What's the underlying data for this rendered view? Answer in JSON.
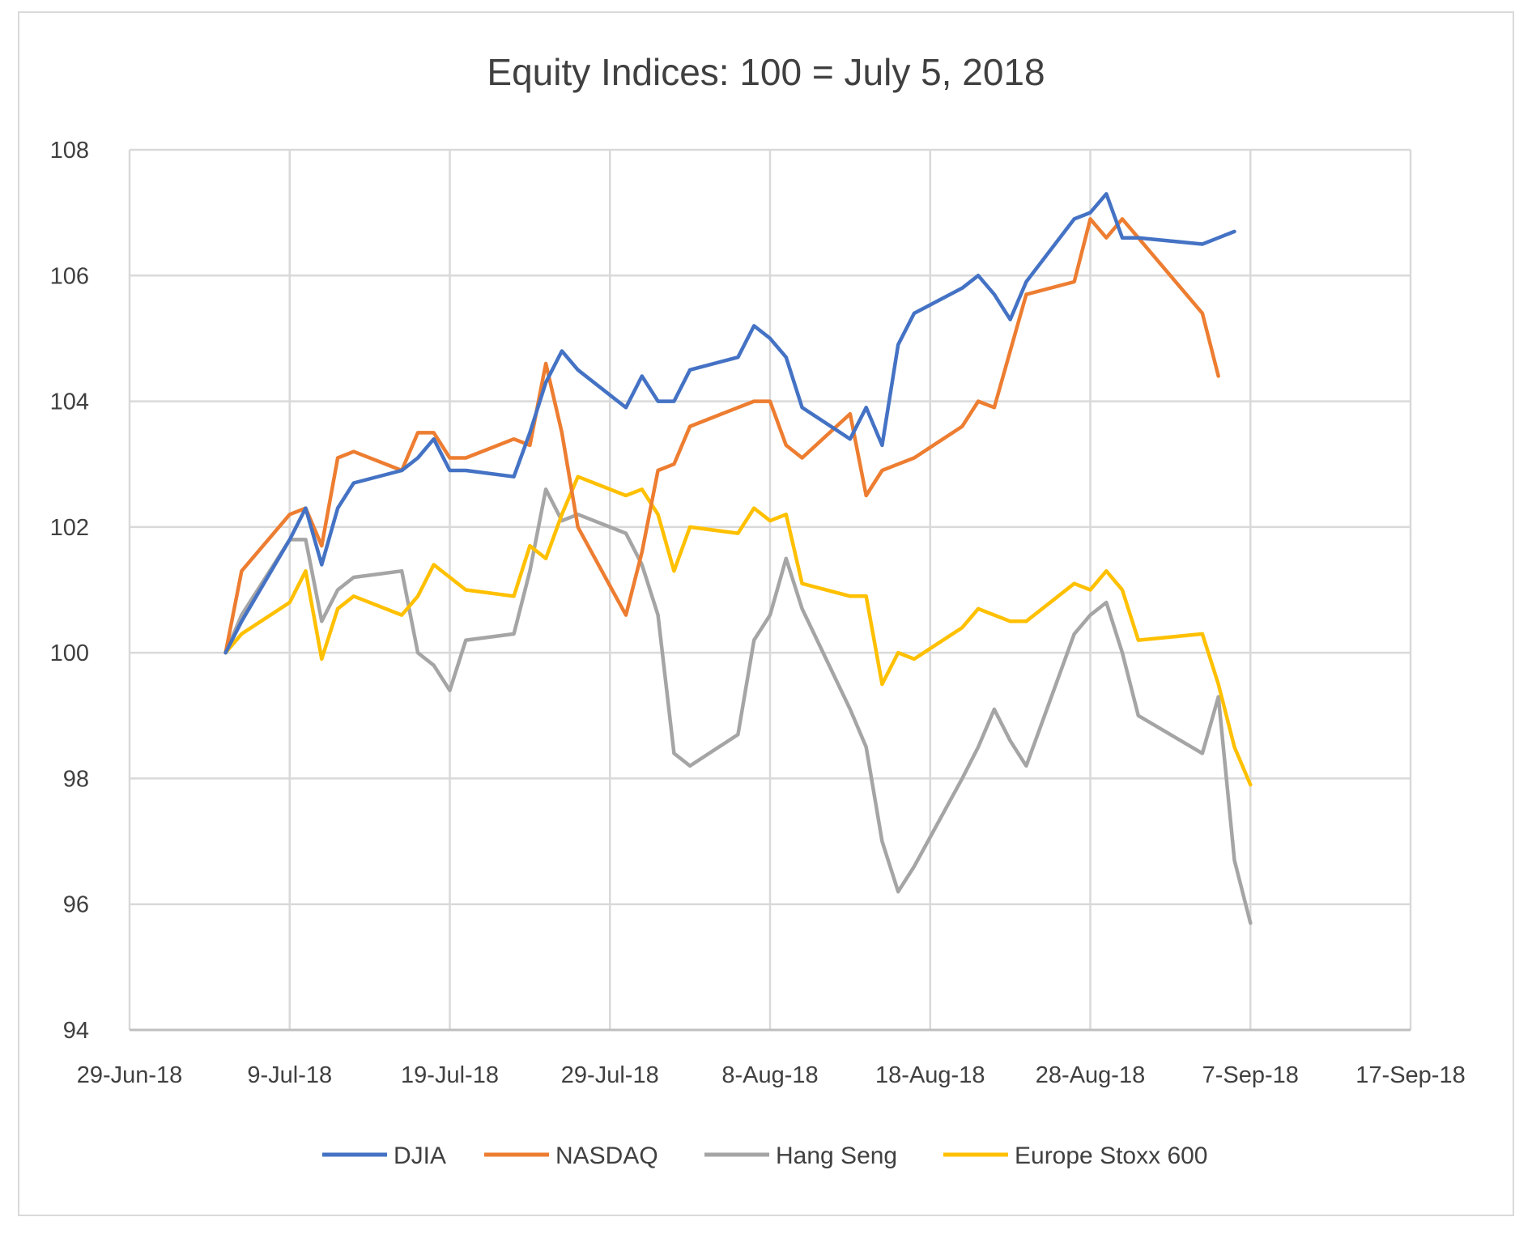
{
  "chart_data": {
    "type": "line",
    "title": "Equity Indices: 100 = July 5, 2018",
    "xlabel": "",
    "ylabel": "",
    "x_dates": [
      "2018-07-05",
      "2018-07-06",
      "2018-07-09",
      "2018-07-10",
      "2018-07-11",
      "2018-07-12",
      "2018-07-13",
      "2018-07-16",
      "2018-07-17",
      "2018-07-18",
      "2018-07-19",
      "2018-07-20",
      "2018-07-23",
      "2018-07-24",
      "2018-07-25",
      "2018-07-26",
      "2018-07-27",
      "2018-07-30",
      "2018-07-31",
      "2018-08-01",
      "2018-08-02",
      "2018-08-03",
      "2018-08-06",
      "2018-08-07",
      "2018-08-08",
      "2018-08-09",
      "2018-08-10",
      "2018-08-13",
      "2018-08-14",
      "2018-08-15",
      "2018-08-16",
      "2018-08-17",
      "2018-08-20",
      "2018-08-21",
      "2018-08-22",
      "2018-08-23",
      "2018-08-24",
      "2018-08-27",
      "2018-08-28",
      "2018-08-29",
      "2018-08-30",
      "2018-08-31",
      "2018-09-04",
      "2018-09-05",
      "2018-09-06"
    ],
    "series": [
      {
        "name": "DJIA",
        "color": "#4472c4",
        "values": [
          100.0,
          100.5,
          101.8,
          102.3,
          101.4,
          102.3,
          102.7,
          102.9,
          103.1,
          103.4,
          102.9,
          102.9,
          102.8,
          103.5,
          104.3,
          104.8,
          104.5,
          103.9,
          104.4,
          104.0,
          104.0,
          104.5,
          104.7,
          105.2,
          105.0,
          104.7,
          103.9,
          103.4,
          103.9,
          103.3,
          104.9,
          105.4,
          105.8,
          106.0,
          105.7,
          105.3,
          105.9,
          106.9,
          107.0,
          107.3,
          106.6,
          106.6,
          106.5,
          106.6,
          106.7
        ]
      },
      {
        "name": "NASDAQ",
        "color": "#ed7d31",
        "values": [
          100.0,
          101.3,
          102.2,
          102.3,
          101.7,
          103.1,
          103.2,
          102.9,
          103.5,
          103.5,
          103.1,
          103.1,
          103.4,
          103.3,
          104.6,
          103.5,
          102.0,
          100.6,
          101.6,
          102.9,
          103.0,
          103.6,
          103.9,
          104.0,
          104.0,
          103.3,
          103.1,
          103.8,
          102.5,
          102.9,
          103.0,
          103.1,
          103.6,
          104.0,
          103.9,
          104.8,
          105.7,
          105.9,
          106.9,
          106.6,
          106.9,
          106.6,
          105.4,
          104.4,
          null
        ]
      },
      {
        "name": "Hang Seng",
        "color": "#a5a5a5",
        "values": [
          100.0,
          100.6,
          101.8,
          101.8,
          100.5,
          101.0,
          101.2,
          101.3,
          100.0,
          99.8,
          99.4,
          100.2,
          100.3,
          101.3,
          102.6,
          102.1,
          102.2,
          101.9,
          101.4,
          100.6,
          98.4,
          98.2,
          98.7,
          100.2,
          100.6,
          101.5,
          100.7,
          99.1,
          98.5,
          97.0,
          96.2,
          96.6,
          98.0,
          98.5,
          99.1,
          98.6,
          98.2,
          100.3,
          100.6,
          100.8,
          100.0,
          99.0,
          98.4,
          99.3,
          96.7
        ]
      },
      {
        "name": "Europe Stoxx 600",
        "color": "#ffc000",
        "values": [
          100.0,
          100.3,
          100.8,
          101.3,
          99.9,
          100.7,
          100.9,
          100.6,
          100.9,
          101.4,
          101.2,
          101.0,
          100.9,
          101.7,
          101.5,
          102.2,
          102.8,
          102.5,
          102.6,
          102.2,
          101.3,
          102.0,
          101.9,
          102.3,
          102.1,
          102.2,
          101.1,
          100.9,
          100.9,
          99.5,
          100.0,
          99.9,
          100.4,
          100.7,
          100.6,
          100.5,
          100.5,
          101.1,
          101.0,
          101.3,
          101.0,
          100.2,
          100.3,
          99.5,
          98.5
        ]
      }
    ],
    "tail_points": {
      "Hang Seng": {
        "date": "2018-09-07",
        "value": 95.7
      },
      "Europe Stoxx 600": {
        "date": "2018-09-07",
        "value": 97.9
      }
    },
    "ylim": [
      94,
      108
    ],
    "yticks": [
      "94",
      "96",
      "98",
      "100",
      "102",
      "104",
      "106",
      "108"
    ],
    "xlim": [
      "2018-06-29",
      "2018-09-17"
    ],
    "xticks": [
      "29-Jun-18",
      "9-Jul-18",
      "19-Jul-18",
      "29-Jul-18",
      "8-Aug-18",
      "18-Aug-18",
      "28-Aug-18",
      "7-Sep-18",
      "17-Sep-18"
    ],
    "grid": true,
    "legend_position": "bottom"
  }
}
